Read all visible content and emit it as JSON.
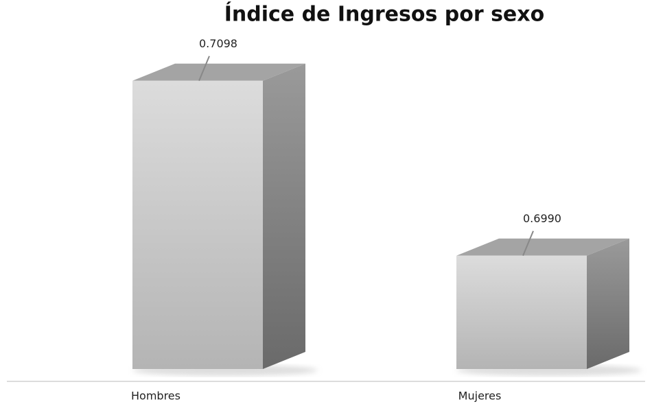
{
  "chart_data": {
    "type": "bar3d",
    "title": "Índice de Ingresos por sexo",
    "categories": [
      "Hombres",
      "Mujeres"
    ],
    "values": [
      0.7098,
      0.699
    ],
    "value_labels": [
      "0.7098",
      "0.6990"
    ],
    "ylim": [
      0.692,
      0.711
    ]
  }
}
